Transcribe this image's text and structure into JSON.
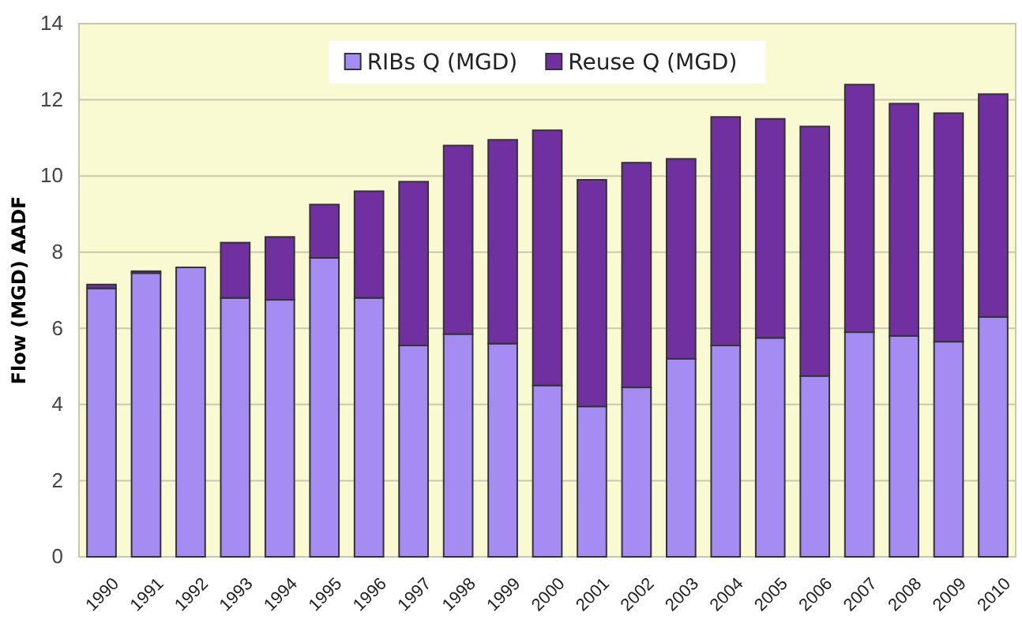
{
  "chart_data": {
    "type": "bar",
    "stacked": true,
    "ylabel": "Flow (MGD) AADF",
    "categories": [
      "1990",
      "1991",
      "1992",
      "1993",
      "1994",
      "1995",
      "1996",
      "1997",
      "1998",
      "1999",
      "2000",
      "2001",
      "2002",
      "2003",
      "2004",
      "2005",
      "2006",
      "2007",
      "2008",
      "2009",
      "2010"
    ],
    "series": [
      {
        "name": "RIBs Q (MGD)",
        "color": "#a58cf2",
        "values": [
          7.05,
          7.45,
          7.6,
          6.8,
          6.75,
          7.85,
          6.8,
          5.55,
          5.85,
          5.6,
          4.5,
          3.95,
          4.45,
          5.2,
          5.55,
          5.75,
          4.75,
          5.9,
          5.8,
          5.65,
          6.3
        ]
      },
      {
        "name": "Reuse Q (MGD)",
        "color": "#7030a0",
        "values": [
          0.1,
          0.05,
          0,
          1.45,
          1.65,
          1.4,
          2.8,
          4.3,
          4.95,
          5.35,
          6.7,
          5.95,
          5.9,
          5.25,
          6.0,
          5.75,
          6.55,
          6.5,
          6.1,
          6.0,
          5.85
        ]
      }
    ],
    "ylim": [
      0,
      14
    ],
    "yticks": [
      0,
      2,
      4,
      6,
      8,
      10,
      12,
      14
    ],
    "grid": "y",
    "legend": "top"
  }
}
